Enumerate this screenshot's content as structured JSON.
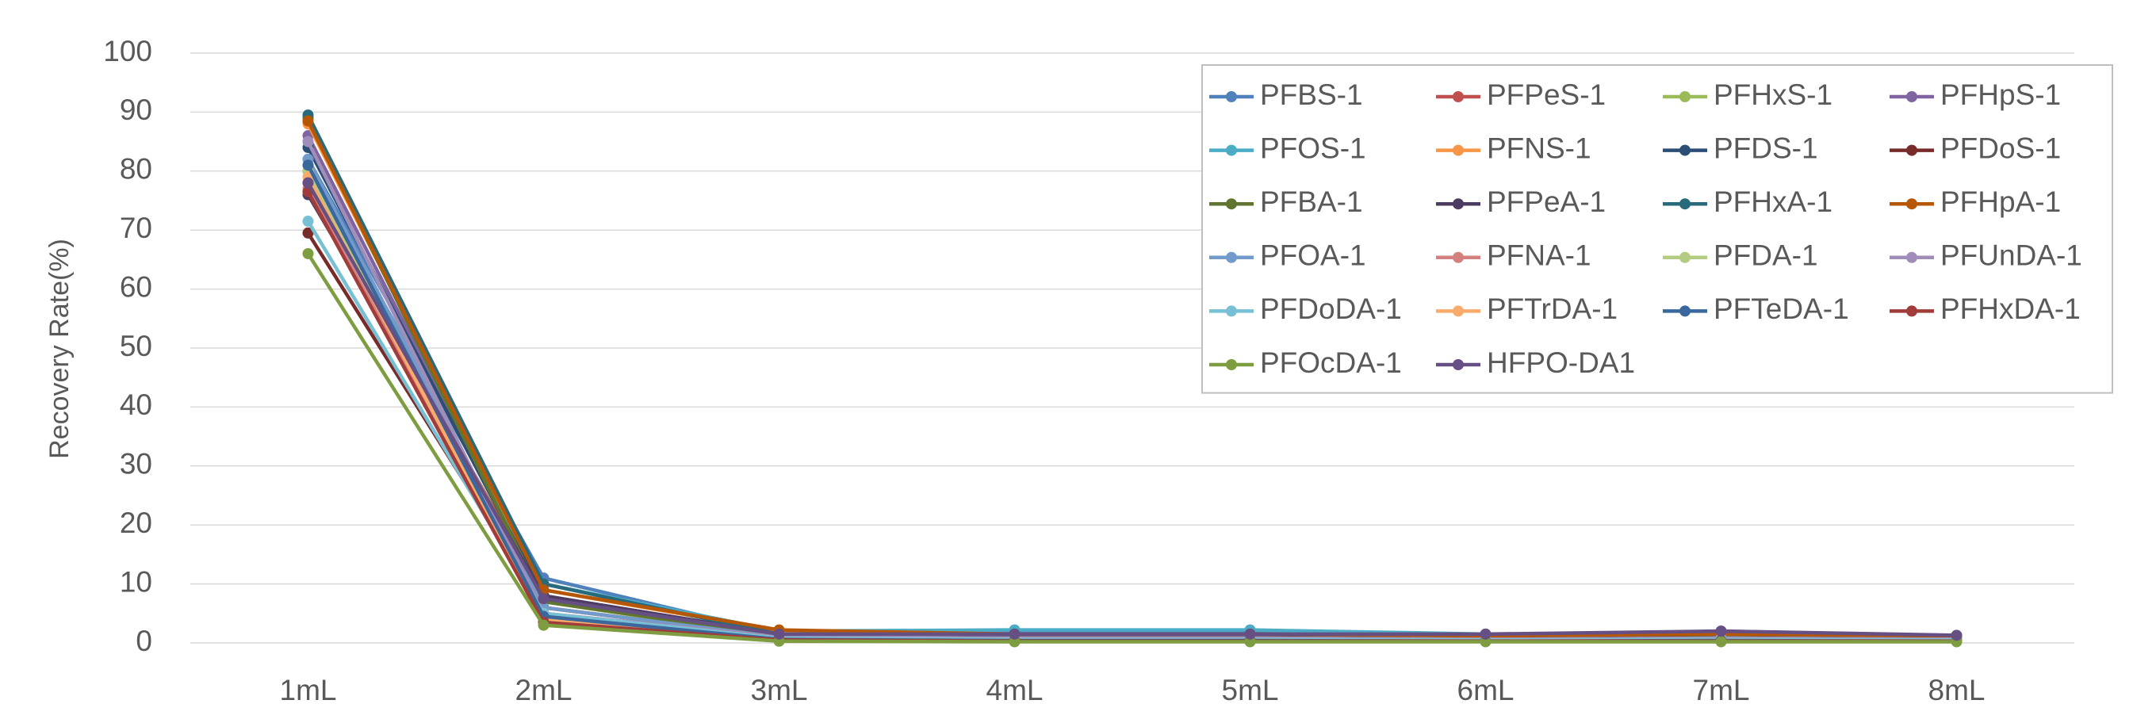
{
  "chart_data": {
    "type": "line",
    "y_label": "Recovery Rate(%)",
    "categories": [
      "1mL",
      "2mL",
      "3mL",
      "4mL",
      "5mL",
      "6mL",
      "7mL",
      "8mL"
    ],
    "ylim": [
      0,
      100
    ],
    "yticks": [
      0,
      10,
      20,
      30,
      40,
      50,
      60,
      70,
      80,
      90,
      100
    ],
    "grid": true,
    "legend": "upper right",
    "series": [
      {
        "name": "PFBS-1",
        "color": "#4f81bd",
        "values": [
          82,
          11,
          1.5,
          2,
          2,
          1.3,
          1.5,
          1.2
        ]
      },
      {
        "name": "PFPeS-1",
        "color": "#c0504d",
        "values": [
          78,
          8,
          1.2,
          1,
          1,
          0.8,
          1,
          0.8
        ]
      },
      {
        "name": "PFHxS-1",
        "color": "#9bbb59",
        "values": [
          80,
          7,
          1,
          0.8,
          0.8,
          0.6,
          0.8,
          0.6
        ]
      },
      {
        "name": "PFHpS-1",
        "color": "#8064a2",
        "values": [
          86,
          8,
          1.5,
          1.5,
          1.5,
          1.2,
          2,
          1.2
        ]
      },
      {
        "name": "PFOS-1",
        "color": "#4bacc6",
        "values": [
          80,
          10,
          2,
          2.2,
          2.2,
          1.5,
          1.5,
          1.2
        ]
      },
      {
        "name": "PFNS-1",
        "color": "#f79646",
        "values": [
          88,
          9,
          2,
          1.5,
          1.5,
          1.2,
          1.2,
          1
        ]
      },
      {
        "name": "PFDS-1",
        "color": "#2c4d75",
        "values": [
          84,
          8,
          1.5,
          1.2,
          1.2,
          1,
          1.2,
          1
        ]
      },
      {
        "name": "PFDoS-1",
        "color": "#772c2a",
        "values": [
          69.5,
          6,
          1,
          0.8,
          0.8,
          0.6,
          0.8,
          0.6
        ]
      },
      {
        "name": "PFBA-1",
        "color": "#5f7530",
        "values": [
          89,
          7,
          1.2,
          1,
          1,
          0.8,
          1,
          0.8
        ]
      },
      {
        "name": "PFPeA-1",
        "color": "#4d3b62",
        "values": [
          76,
          8,
          1.5,
          1.2,
          1.2,
          1,
          1.5,
          1
        ]
      },
      {
        "name": "PFHxA-1",
        "color": "#276a7c",
        "values": [
          89.5,
          10,
          1.5,
          1.5,
          1.5,
          1.2,
          1.5,
          1.2
        ]
      },
      {
        "name": "PFHpA-1",
        "color": "#b65708",
        "values": [
          88.5,
          9,
          2.2,
          1.5,
          1.5,
          1.2,
          1.5,
          1.2
        ]
      },
      {
        "name": "PFOA-1",
        "color": "#729aca",
        "values": [
          82,
          6,
          1,
          0.8,
          0.8,
          0.6,
          0.8,
          0.6
        ]
      },
      {
        "name": "PFNA-1",
        "color": "#d4807e",
        "values": [
          77,
          5,
          1,
          0.8,
          0.8,
          0.6,
          0.8,
          0.6
        ]
      },
      {
        "name": "PFDA-1",
        "color": "#b3cc82",
        "values": [
          80,
          4,
          0.8,
          0.5,
          0.5,
          0.4,
          0.5,
          0.4
        ]
      },
      {
        "name": "PFUnDA-1",
        "color": "#a08db9",
        "values": [
          85,
          5,
          1,
          0.8,
          0.8,
          0.6,
          0.8,
          0.6
        ]
      },
      {
        "name": "PFDoDA-1",
        "color": "#78c0d4",
        "values": [
          71.5,
          5,
          0.8,
          0.6,
          0.6,
          0.5,
          0.6,
          0.5
        ]
      },
      {
        "name": "PFTrDA-1",
        "color": "#f9ab6c",
        "values": [
          79,
          4,
          0.6,
          0.4,
          0.4,
          0.3,
          0.4,
          0.3
        ]
      },
      {
        "name": "PFTeDA-1",
        "color": "#3a679c",
        "values": [
          81,
          4.5,
          0.6,
          0.4,
          0.4,
          0.3,
          0.4,
          0.3
        ]
      },
      {
        "name": "PFHxDA-1",
        "color": "#a03c39",
        "values": [
          76.5,
          3.5,
          0.5,
          0.3,
          0.3,
          0.3,
          0.3,
          0.3
        ]
      },
      {
        "name": "PFOcDA-1",
        "color": "#7e9d40",
        "values": [
          66,
          3,
          0.3,
          0.2,
          0.2,
          0.2,
          0.2,
          0.2
        ]
      },
      {
        "name": "HFPO-DA1",
        "color": "#664f83",
        "values": [
          78,
          7.5,
          1.5,
          1.5,
          1.5,
          1.5,
          2,
          1.3
        ]
      }
    ]
  }
}
